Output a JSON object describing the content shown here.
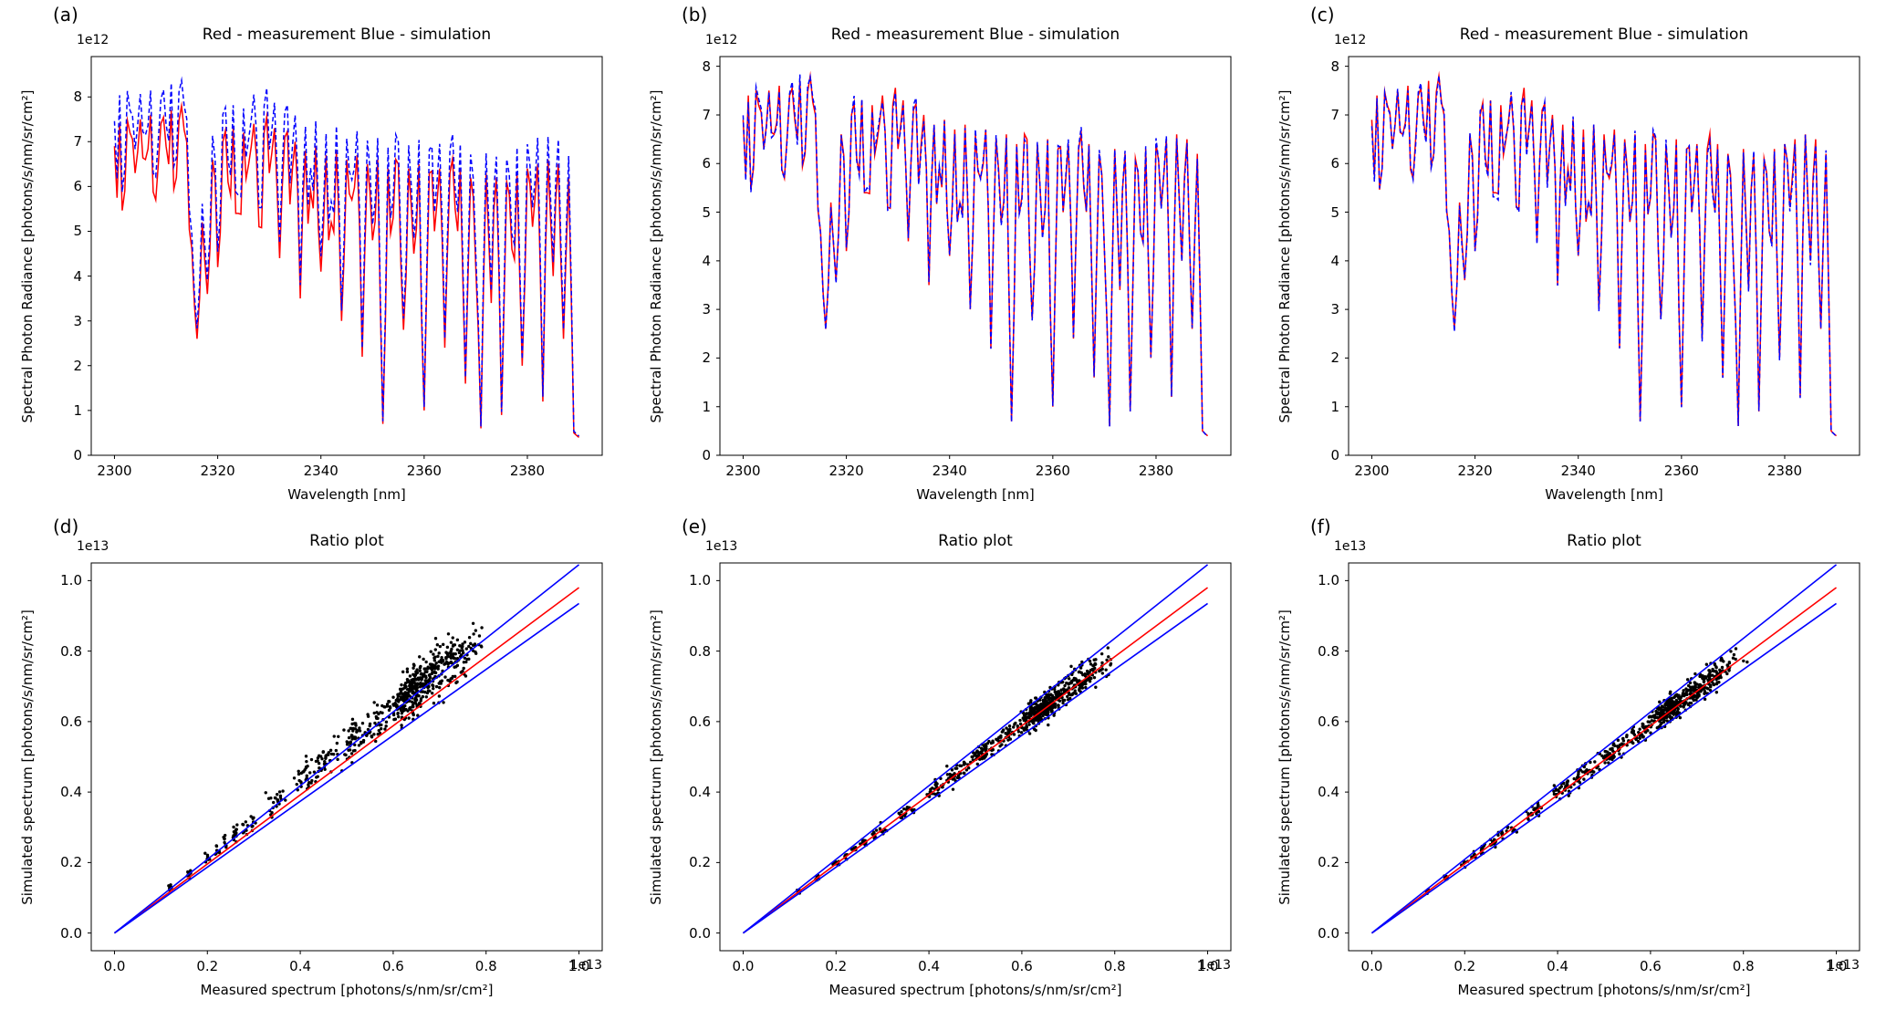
{
  "figure": {
    "background": "#ffffff",
    "rows": 2,
    "cols": 3
  },
  "base_spectrum": {
    "unit": "1e12 photons/s/nm/sr/cm²",
    "x_unit": "nm",
    "x_start": 2300,
    "x_step": 1,
    "values": [
      6.9,
      7.4,
      5.9,
      7.2,
      6.3,
      7.5,
      6.6,
      7.6,
      5.7,
      7.4,
      6.9,
      7.7,
      6.2,
      7.8,
      7.0,
      4.6,
      2.6,
      5.2,
      3.6,
      6.6,
      4.2,
      7.0,
      6.1,
      7.3,
      5.4,
      7.2,
      6.5,
      7.4,
      5.1,
      7.2,
      6.3,
      7.3,
      4.4,
      7.1,
      5.6,
      7.0,
      3.5,
      6.8,
      5.9,
      6.9,
      4.1,
      6.7,
      5.2,
      6.8,
      3.0,
      6.6,
      5.7,
      6.7,
      2.2,
      6.5,
      4.8,
      6.6,
      0.7,
      6.4,
      5.3,
      6.5,
      2.8,
      6.4,
      4.5,
      6.5,
      1.0,
      6.3,
      5.0,
      6.4,
      2.4,
      6.3,
      5.5,
      6.4,
      1.6,
      6.2,
      4.2,
      0.6,
      6.3,
      3.4,
      6.2,
      0.9,
      6.1,
      4.6,
      6.3,
      2.0,
      6.4,
      5.1,
      6.5,
      1.2,
      6.6,
      4.0,
      6.5,
      2.6,
      6.2,
      0.5,
      0.4
    ]
  },
  "render": {
    "seed": 7,
    "upsample_wobble": [
      0.8,
      0.35
    ],
    "dash": [
      5,
      3
    ],
    "line_width": 1.5,
    "marker_radius": 1.7
  },
  "chart_data": [
    {
      "letter": "(a)",
      "type": "line",
      "title": "Red - measurement Blue - simulation",
      "xlabel": "Wavelength [nm]",
      "ylabel": "Spectral Photon Radiance [photons/s/nm/sr/cm²]",
      "y_offset_text": "1e12",
      "xlim": [
        2295.5,
        2394.5
      ],
      "ylim": [
        0,
        8.9
      ],
      "x_ticks": [
        2300,
        2320,
        2340,
        2360,
        2380
      ],
      "x_tick_labels": [
        "2300",
        "2320",
        "2340",
        "2360",
        "2380"
      ],
      "y_ticks": [
        0,
        1,
        2,
        3,
        4,
        5,
        6,
        7,
        8
      ],
      "y_tick_labels": [
        "0",
        "1",
        "2",
        "3",
        "4",
        "5",
        "6",
        "7",
        "8"
      ],
      "grid": false,
      "legend": "none",
      "series": [
        {
          "name": "measurement",
          "color": "#ff0000",
          "style": "solid",
          "scale": 1.0,
          "jitter": 0
        },
        {
          "name": "simulation",
          "color": "#0000ff",
          "style": "dashed",
          "scale": 1.08,
          "jitter": 0.01
        }
      ]
    },
    {
      "letter": "(b)",
      "type": "line",
      "title": "Red - measurement Blue - simulation",
      "xlabel": "Wavelength [nm]",
      "ylabel": "Spectral Photon Radiance [photons/s/nm/sr/cm²]",
      "y_offset_text": "1e12",
      "xlim": [
        2295.5,
        2394.5
      ],
      "ylim": [
        0,
        8.2
      ],
      "x_ticks": [
        2300,
        2320,
        2340,
        2360,
        2380
      ],
      "x_tick_labels": [
        "2300",
        "2320",
        "2340",
        "2360",
        "2380"
      ],
      "y_ticks": [
        0,
        1,
        2,
        3,
        4,
        5,
        6,
        7,
        8
      ],
      "y_tick_labels": [
        "0",
        "1",
        "2",
        "3",
        "4",
        "5",
        "6",
        "7",
        "8"
      ],
      "grid": false,
      "legend": "none",
      "series": [
        {
          "name": "measurement",
          "color": "#ff0000",
          "style": "solid",
          "scale": 1.0,
          "jitter": 0
        },
        {
          "name": "simulation",
          "color": "#0000ff",
          "style": "dashed",
          "scale": 1.0,
          "jitter": 0.02
        }
      ]
    },
    {
      "letter": "(c)",
      "type": "line",
      "title": "Red - measurement Blue - simulation",
      "xlabel": "Wavelength [nm]",
      "ylabel": "Spectral Photon Radiance [photons/s/nm/sr/cm²]",
      "y_offset_text": "1e12",
      "xlim": [
        2295.5,
        2394.5
      ],
      "ylim": [
        0,
        8.2
      ],
      "x_ticks": [
        2300,
        2320,
        2340,
        2360,
        2380
      ],
      "x_tick_labels": [
        "2300",
        "2320",
        "2340",
        "2360",
        "2380"
      ],
      "y_ticks": [
        0,
        1,
        2,
        3,
        4,
        5,
        6,
        7,
        8
      ],
      "y_tick_labels": [
        "0",
        "1",
        "2",
        "3",
        "4",
        "5",
        "6",
        "7",
        "8"
      ],
      "grid": false,
      "legend": "none",
      "series": [
        {
          "name": "measurement",
          "color": "#ff0000",
          "style": "solid",
          "scale": 1.0,
          "jitter": 0
        },
        {
          "name": "simulation",
          "color": "#0000ff",
          "style": "dashed",
          "scale": 0.995,
          "jitter": 0.02
        }
      ]
    },
    {
      "letter": "(d)",
      "type": "scatter",
      "title": "Ratio plot",
      "xlabel": "Measured spectrum [photons/s/nm/sr/cm²]",
      "ylabel": "Simulated spectrum [photons/s/nm/sr/cm²]",
      "x_offset_text": "1e13",
      "y_offset_text": "1e13",
      "xlim": [
        -0.05,
        1.05
      ],
      "ylim": [
        -0.05,
        1.05
      ],
      "x_ticks": [
        0,
        0.2,
        0.4,
        0.6,
        0.8,
        1.0
      ],
      "x_tick_labels": [
        "0.0",
        "0.2",
        "0.4",
        "0.6",
        "0.8",
        "1.0"
      ],
      "y_ticks": [
        0,
        0.2,
        0.4,
        0.6,
        0.8,
        1.0
      ],
      "y_tick_labels": [
        "0.0",
        "0.2",
        "0.4",
        "0.6",
        "0.8",
        "1.0"
      ],
      "grid": false,
      "legend": "none",
      "fit_lines": [
        {
          "name": "ratio-fit-line",
          "color": "#ff0000",
          "slope": 0.98
        },
        {
          "name": "upper-bound-line",
          "color": "#0000ff",
          "slope": 1.045
        },
        {
          "name": "lower-bound-line",
          "color": "#0000ff",
          "slope": 0.935
        }
      ],
      "line_x_range": [
        0,
        1.0
      ],
      "scatter": {
        "marker_color": "#000000",
        "y_scale": 1.07,
        "sigma_x": 0.03,
        "sigma_y": 0.09,
        "copies": 8,
        "min_value": 1.2
      }
    },
    {
      "letter": "(e)",
      "type": "scatter",
      "title": "Ratio plot",
      "xlabel": "Measured spectrum [photons/s/nm/sr/cm²]",
      "ylabel": "Simulated spectrum [photons/s/nm/sr/cm²]",
      "x_offset_text": "1e13",
      "y_offset_text": "1e13",
      "xlim": [
        -0.05,
        1.05
      ],
      "ylim": [
        -0.05,
        1.05
      ],
      "x_ticks": [
        0,
        0.2,
        0.4,
        0.6,
        0.8,
        1.0
      ],
      "x_tick_labels": [
        "0.0",
        "0.2",
        "0.4",
        "0.6",
        "0.8",
        "1.0"
      ],
      "y_ticks": [
        0,
        0.2,
        0.4,
        0.6,
        0.8,
        1.0
      ],
      "y_tick_labels": [
        "0.0",
        "0.2",
        "0.4",
        "0.6",
        "0.8",
        "1.0"
      ],
      "grid": false,
      "legend": "none",
      "fit_lines": [
        {
          "name": "ratio-fit-line",
          "color": "#ff0000",
          "slope": 0.98
        },
        {
          "name": "upper-bound-line",
          "color": "#0000ff",
          "slope": 1.045
        },
        {
          "name": "lower-bound-line",
          "color": "#0000ff",
          "slope": 0.935
        }
      ],
      "line_x_range": [
        0,
        1.0
      ],
      "scatter": {
        "marker_color": "#000000",
        "y_scale": 0.99,
        "sigma_x": 0.03,
        "sigma_y": 0.05,
        "copies": 8,
        "min_value": 1.2
      }
    },
    {
      "letter": "(f)",
      "type": "scatter",
      "title": "Ratio plot",
      "xlabel": "Measured spectrum [photons/s/nm/sr/cm²]",
      "ylabel": "Simulated spectrum [photons/s/nm/sr/cm²]",
      "x_offset_text": "1e13",
      "y_offset_text": "1e13",
      "xlim": [
        -0.05,
        1.05
      ],
      "ylim": [
        -0.05,
        1.05
      ],
      "x_ticks": [
        0,
        0.2,
        0.4,
        0.6,
        0.8,
        1.0
      ],
      "x_tick_labels": [
        "0.0",
        "0.2",
        "0.4",
        "0.6",
        "0.8",
        "1.0"
      ],
      "y_ticks": [
        0,
        0.2,
        0.4,
        0.6,
        0.8,
        1.0
      ],
      "y_tick_labels": [
        "0.0",
        "0.2",
        "0.4",
        "0.6",
        "0.8",
        "1.0"
      ],
      "grid": false,
      "legend": "none",
      "fit_lines": [
        {
          "name": "ratio-fit-line",
          "color": "#ff0000",
          "slope": 0.98
        },
        {
          "name": "upper-bound-line",
          "color": "#0000ff",
          "slope": 1.045
        },
        {
          "name": "lower-bound-line",
          "color": "#0000ff",
          "slope": 0.935
        }
      ],
      "line_x_range": [
        0,
        1.0
      ],
      "scatter": {
        "marker_color": "#000000",
        "y_scale": 0.99,
        "sigma_x": 0.03,
        "sigma_y": 0.05,
        "copies": 8,
        "min_value": 1.2
      }
    }
  ]
}
